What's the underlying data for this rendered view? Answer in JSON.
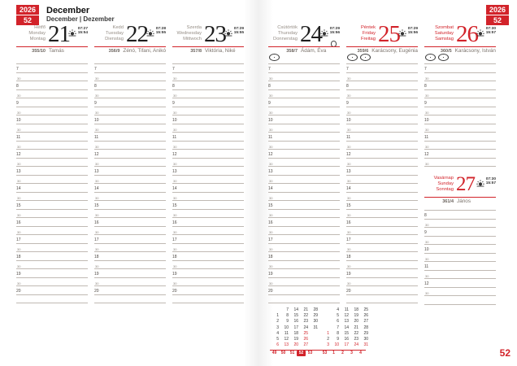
{
  "page": {
    "year": "2026",
    "week": "52",
    "month_title": "December",
    "month_subtitle": "December | Dezember",
    "page_number": "52"
  },
  "colors": {
    "accent_red": "#d2232a"
  },
  "icons": {
    "sunrise_sunset": "sun-over-horizon-icon",
    "full_moon": "circle-outline-moon-icon",
    "day_symbol": "oval-with-dot-icon"
  },
  "days": [
    {
      "day_hu": "Hétfő",
      "day_en": "Monday",
      "day_de": "Montag",
      "number": "21",
      "sunrise": "07:27",
      "sunset": "15:54",
      "day_of_year": "355/10",
      "name_days": "Tamás",
      "is_red": false,
      "has_full_moon": false,
      "symbol_count": 0
    },
    {
      "day_hu": "Kedd",
      "day_en": "Tuesday",
      "day_de": "Dienstag",
      "number": "22",
      "sunrise": "07:28",
      "sunset": "15:55",
      "day_of_year": "356/9",
      "name_days": "Zénó, Tifani, Anikó",
      "is_red": false,
      "has_full_moon": false,
      "symbol_count": 0
    },
    {
      "day_hu": "Szerda",
      "day_en": "Wednesday",
      "day_de": "Mittwoch",
      "number": "23",
      "sunrise": "07:29",
      "sunset": "15:55",
      "day_of_year": "357/8",
      "name_days": "Viktória, Niké",
      "is_red": false,
      "has_full_moon": false,
      "symbol_count": 0
    },
    {
      "day_hu": "Csütörtök",
      "day_en": "Thursday",
      "day_de": "Donnerstag",
      "number": "24",
      "sunrise": "07:29",
      "sunset": "15:56",
      "day_of_year": "358/7",
      "name_days": "Ádám, Éva",
      "is_red": false,
      "has_full_moon": true,
      "symbol_count": 1
    },
    {
      "day_hu": "Péntek",
      "day_en": "Friday",
      "day_de": "Freitag",
      "number": "25",
      "sunrise": "07:29",
      "sunset": "15:56",
      "day_of_year": "359/6",
      "name_days": "Karácsony, Eugénia",
      "is_red": true,
      "has_full_moon": false,
      "symbol_count": 2
    },
    {
      "day_hu": "Szombat",
      "day_en": "Saturday",
      "day_de": "Samstag",
      "number": "26",
      "sunrise": "07:30",
      "sunset": "15:57",
      "day_of_year": "360/5",
      "name_days": "Karácsony, István",
      "is_red": true,
      "has_full_moon": false,
      "symbol_count": 2
    },
    {
      "day_hu": "Vasárnap",
      "day_en": "Sunday",
      "day_de": "Sonntag",
      "number": "27",
      "sunrise": "07:30",
      "sunset": "15:57",
      "day_of_year": "361/4",
      "name_days": "János",
      "is_red": true,
      "has_full_moon": false,
      "symbol_count": 0
    }
  ],
  "schedule": {
    "weekday_hours": [
      "7",
      "8",
      "9",
      "10",
      "11",
      "12",
      "13",
      "14",
      "15",
      "16",
      "17",
      "18",
      "19",
      "20"
    ],
    "saturday_hours": [
      "7",
      "8",
      "9",
      "10",
      "11",
      "12"
    ],
    "sunday_hours": [
      "8",
      "9",
      "10",
      "11",
      "12"
    ],
    "half_hour_label": "30"
  },
  "mini_calendar": {
    "months": [
      {
        "rows": [
          [
            "",
            "7",
            "14",
            "21",
            "28"
          ],
          [
            "1",
            "8",
            "15",
            "22",
            "29"
          ],
          [
            "2",
            "9",
            "16",
            "23",
            "30"
          ],
          [
            "3",
            "10",
            "17",
            "24",
            "31"
          ],
          [
            "4",
            "11",
            "18",
            "25",
            ""
          ],
          [
            "5",
            "12",
            "19",
            "26",
            ""
          ],
          [
            "6",
            "13",
            "20",
            "27",
            ""
          ]
        ],
        "red_days": [
          6,
          13,
          20,
          25,
          26,
          27
        ],
        "week_numbers": [
          "49",
          "50",
          "51",
          "52",
          "53"
        ]
      },
      {
        "rows": [
          [
            "",
            "4",
            "11",
            "18",
            "25"
          ],
          [
            "",
            "5",
            "12",
            "19",
            "26"
          ],
          [
            "",
            "6",
            "13",
            "20",
            "27"
          ],
          [
            "",
            "7",
            "14",
            "21",
            "28"
          ],
          [
            "1",
            "8",
            "15",
            "22",
            "29"
          ],
          [
            "2",
            "9",
            "16",
            "23",
            "30"
          ],
          [
            "3",
            "10",
            "17",
            "24",
            "31"
          ]
        ],
        "red_days": [
          1,
          3,
          10,
          17,
          24,
          31
        ],
        "week_numbers": [
          "53",
          "1",
          "2",
          "3",
          "4"
        ]
      }
    ],
    "current_week": "52"
  }
}
